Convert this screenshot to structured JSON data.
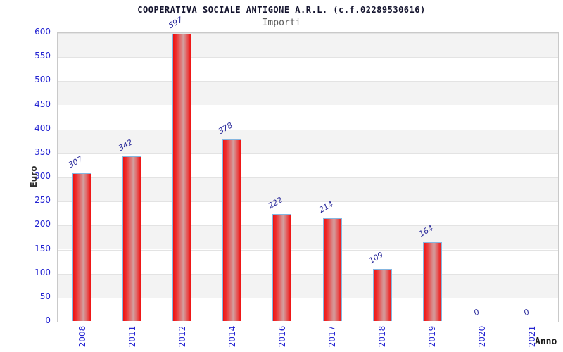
{
  "chart_data": {
    "type": "bar",
    "title": "COOPERATIVA SOCIALE ANTIGONE A.R.L. (c.f.02289530616)",
    "subtitle": "Importi",
    "xlabel": "Anno",
    "ylabel": "Euro",
    "categories": [
      "2008",
      "2011",
      "2012",
      "2014",
      "2016",
      "2017",
      "2018",
      "2019",
      "2020",
      "2021"
    ],
    "values": [
      307,
      342,
      597,
      378,
      222,
      214,
      109,
      164,
      0,
      0
    ],
    "ylim": [
      0,
      600
    ],
    "ytick_step": 50,
    "legend": "none",
    "grid": "horizontal-bands-alternating",
    "colors": {
      "bar_fill_edge": "#ee1111",
      "bar_fill_center": "#d3a0a0",
      "bar_border": "#85b6e0",
      "tick_label": "#2424d2",
      "value_label": "#28289a",
      "band_gray": "#f3f3f3",
      "band_white": "#ffffff",
      "title_color": "#14142e",
      "subtitle_color": "#5a5a5a",
      "axis_title_color": "#303030"
    }
  }
}
